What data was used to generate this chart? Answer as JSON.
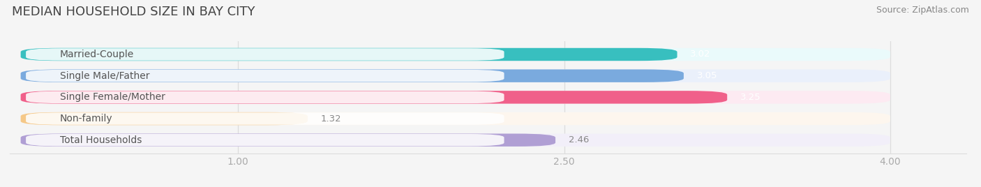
{
  "title": "MEDIAN HOUSEHOLD SIZE IN BAY CITY",
  "source": "Source: ZipAtlas.com",
  "categories": [
    "Married-Couple",
    "Single Male/Father",
    "Single Female/Mother",
    "Non-family",
    "Total Households"
  ],
  "values": [
    3.02,
    3.05,
    3.25,
    1.32,
    2.46
  ],
  "bar_colors": [
    "#38bfbf",
    "#7aaade",
    "#f0608a",
    "#f5c888",
    "#b09fd4"
  ],
  "bar_bg_colors": [
    "#eafafb",
    "#eaf0fb",
    "#fdeaf2",
    "#fdf6ee",
    "#f2eff9"
  ],
  "value_colors": [
    "white",
    "white",
    "white",
    "#888888",
    "#888888"
  ],
  "xlim_data": [
    0.0,
    4.0
  ],
  "xlim_plot": [
    -0.05,
    4.35
  ],
  "xticks": [
    1.0,
    2.5,
    4.0
  ],
  "xticklabels": [
    "1.00",
    "2.50",
    "4.00"
  ],
  "title_fontsize": 13,
  "label_fontsize": 10,
  "value_fontsize": 9.5,
  "source_fontsize": 9,
  "bar_height": 0.6,
  "bg_color": "#ffffff",
  "outer_bg": "#f5f5f5"
}
